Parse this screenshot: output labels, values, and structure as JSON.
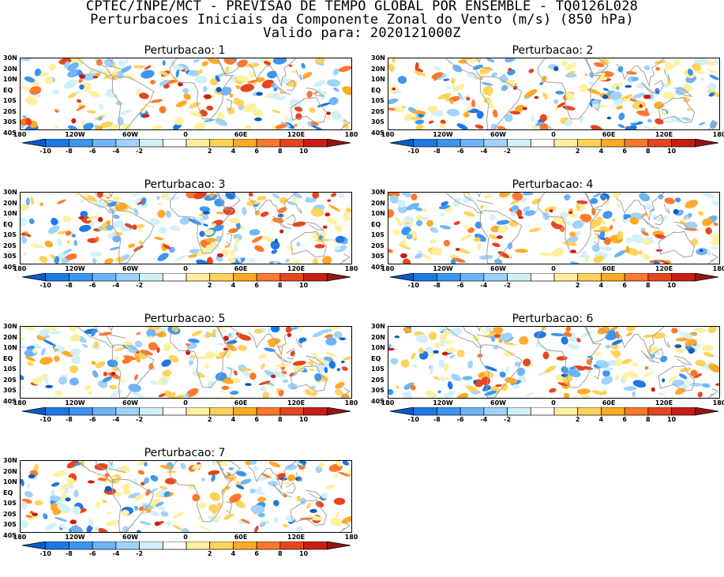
{
  "header": {
    "line1": "CPTEC/INPE/MCT - PREVISAO DE TEMPO GLOBAL POR ENSEMBLE - TQ0126L028",
    "line2": "Perturbacoes Iniciais da Componente Zonal do Vento (m/s) (850 hPa)",
    "line3": "Valido para: 2020121000Z"
  },
  "panels": [
    {
      "title": "Perturbacao: 1"
    },
    {
      "title": "Perturbacao: 2"
    },
    {
      "title": "Perturbacao: 3"
    },
    {
      "title": "Perturbacao: 4"
    },
    {
      "title": "Perturbacao: 5"
    },
    {
      "title": "Perturbacao: 6"
    },
    {
      "title": "Perturbacao: 7"
    }
  ],
  "axes": {
    "y_ticks": [
      "30N",
      "20N",
      "10N",
      "EQ",
      "10S",
      "20S",
      "30S",
      "40S"
    ],
    "x_ticks": [
      "180",
      "120W",
      "60W",
      "0",
      "60E",
      "120E",
      "180"
    ]
  },
  "colorbar": {
    "labels": [
      "-10",
      "-8",
      "-6",
      "-4",
      "-2",
      "2",
      "4",
      "6",
      "8",
      "10"
    ],
    "colors": [
      "#0a5ac8",
      "#1e78e6",
      "#3c96f0",
      "#6eb4f8",
      "#a0d2fa",
      "#d2f0fa",
      "#ffffff",
      "#fff0a0",
      "#ffd25a",
      "#ffaa28",
      "#ff782d",
      "#e6461e",
      "#c81e14",
      "#961414"
    ]
  },
  "colors": {
    "land_outline": "#a0a0a0",
    "frame": "#000000"
  }
}
